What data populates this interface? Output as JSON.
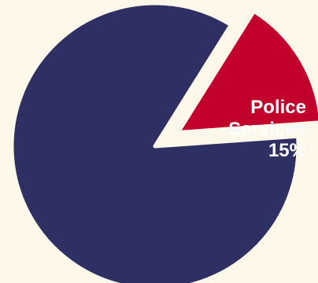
{
  "chart_data": {
    "type": "pie",
    "slices": [
      {
        "label": "",
        "value": 85,
        "color": "#2e2f62",
        "exploded": false
      },
      {
        "label": "Police Services",
        "label_lines": [
          "Police",
          "Services"
        ],
        "value_label": "15%",
        "value": 15,
        "color": "#c1002b",
        "exploded": true
      }
    ],
    "background": "#fdf8ea",
    "slice_gap_color": "#fdf8ea"
  }
}
